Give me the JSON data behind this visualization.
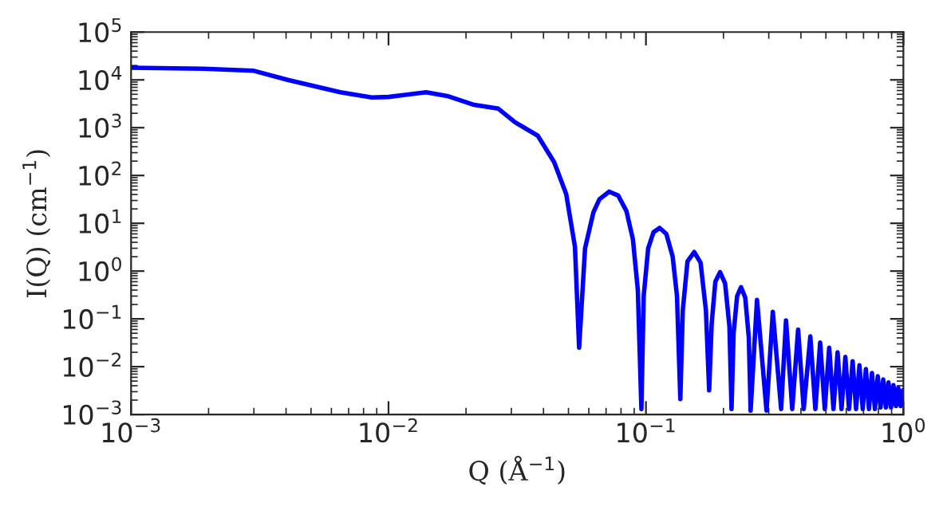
{
  "chart_data": {
    "type": "line",
    "xlabel": "Q (Å$^{−1}$)",
    "ylabel": "I(Q) (cm$^{−1}$)",
    "log": "xy",
    "grid": false,
    "legend": false,
    "xlim": [
      0.001,
      1
    ],
    "ylim": [
      0.001,
      100000
    ],
    "xticks": [
      {
        "value": 0.001,
        "label": "10$^{−3}$"
      },
      {
        "value": 0.01,
        "label": "10$^{−2}$"
      },
      {
        "value": 0.1,
        "label": "10$^{−1}$"
      },
      {
        "value": 1,
        "label": "10$^{0}$"
      }
    ],
    "yticks": [
      {
        "value": 0.001,
        "label": "10$^{−3}$"
      },
      {
        "value": 0.01,
        "label": "10$^{−2}$"
      },
      {
        "value": 0.1,
        "label": "10$^{−1}$"
      },
      {
        "value": 1,
        "label": "10$^{0}$"
      },
      {
        "value": 10,
        "label": "10$^{1}$"
      },
      {
        "value": 100,
        "label": "10$^{2}$"
      },
      {
        "value": 1000,
        "label": "10$^{3}$"
      },
      {
        "value": 10000,
        "label": "10$^{4}$"
      },
      {
        "value": 100000,
        "label": "10$^{5}$"
      }
    ],
    "series": [
      {
        "color": "#0000ff",
        "line_style": "solid",
        "marker": "none",
        "x": [
          0.001,
          0.002,
          0.003,
          0.00406,
          0.0065,
          0.0086,
          0.01,
          0.014,
          0.0169,
          0.0215,
          0.0267,
          0.031,
          0.038,
          0.044,
          0.049,
          0.053,
          0.055,
          0.058,
          0.0625,
          0.066,
          0.072,
          0.078,
          0.084,
          0.089,
          0.093,
          0.096,
          0.098,
          0.102,
          0.107,
          0.113,
          0.12,
          0.127,
          0.132,
          0.136,
          0.139,
          0.145,
          0.154,
          0.163,
          0.171,
          0.176,
          0.18,
          0.186,
          0.194,
          0.203,
          0.211,
          0.215,
          0.219,
          0.226,
          0.234,
          0.243,
          0.251,
          0.255,
          0.27,
          0.294,
          0.311,
          0.335,
          0.35,
          0.37,
          0.39,
          0.41,
          0.435,
          0.455,
          0.475,
          0.495,
          0.515,
          0.535,
          0.555,
          0.575,
          0.595,
          0.615,
          0.635,
          0.655,
          0.675,
          0.695,
          0.715,
          0.735,
          0.755,
          0.775,
          0.795,
          0.815,
          0.835,
          0.855,
          0.875,
          0.895,
          0.915,
          0.935,
          0.955,
          0.975,
          0.995
        ],
        "values": [
          18000,
          17000,
          15500,
          10000,
          5500,
          4300,
          4400,
          5500,
          4600,
          3000,
          2500,
          1300,
          680,
          190,
          41,
          3.2,
          0.025,
          3,
          17,
          32,
          46,
          38,
          18,
          4.6,
          0.4,
          0.0013,
          0.3,
          3,
          6.5,
          8,
          6,
          2,
          0.3,
          0.0021,
          0.15,
          1.6,
          2.5,
          1.5,
          0.15,
          0.0032,
          0.08,
          0.6,
          0.95,
          0.55,
          0.07,
          0.0013,
          0.05,
          0.3,
          0.46,
          0.28,
          0.04,
          0.0012,
          0.25,
          0.0012,
          0.14,
          0.0013,
          0.093,
          0.0013,
          0.06,
          0.0013,
          0.043,
          0.0013,
          0.032,
          0.0013,
          0.025,
          0.0013,
          0.02,
          0.0013,
          0.016,
          0.0013,
          0.013,
          0.0013,
          0.0107,
          0.0013,
          0.0089,
          0.0013,
          0.0074,
          0.0013,
          0.0063,
          0.0014,
          0.0054,
          0.0014,
          0.0047,
          0.0014,
          0.0041,
          0.0015,
          0.0036,
          0.0015,
          0.0032
        ]
      }
    ]
  }
}
